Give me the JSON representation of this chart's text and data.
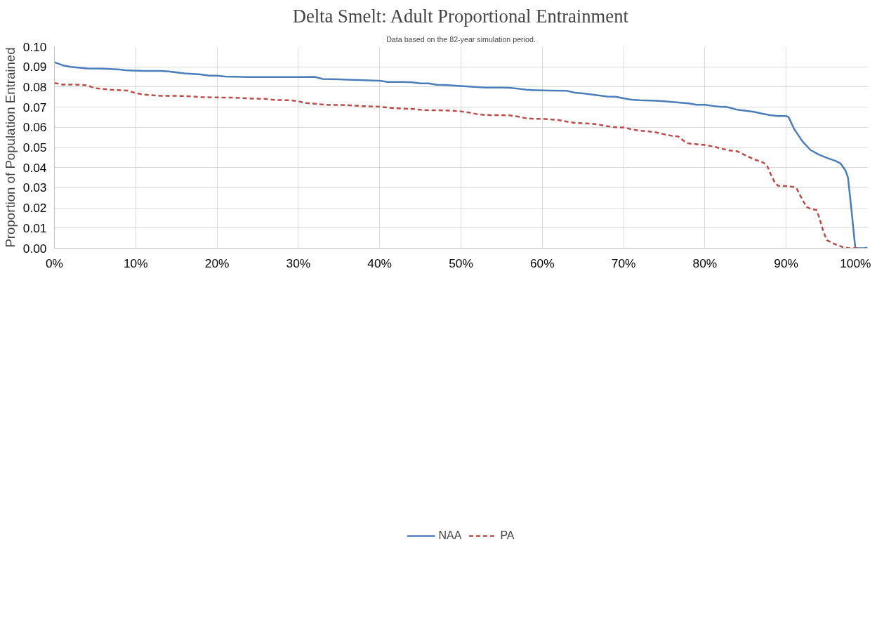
{
  "chart_data": {
    "type": "line",
    "title": "Delta Smelt: Adult Proportional Entrainment",
    "subtitle": "Data based on the 82-year simulation period.",
    "ylabel": "Proportion of Population Entrained",
    "xlim": [
      0,
      100
    ],
    "xticks": [
      {
        "value": 0,
        "label": "0%"
      },
      {
        "value": 10,
        "label": "10%"
      },
      {
        "value": 20,
        "label": "20%"
      },
      {
        "value": 30,
        "label": "30%"
      },
      {
        "value": 40,
        "label": "40%"
      },
      {
        "value": 50,
        "label": "50%"
      },
      {
        "value": 60,
        "label": "60%"
      },
      {
        "value": 70,
        "label": "70%"
      },
      {
        "value": 80,
        "label": "80%"
      },
      {
        "value": 90,
        "label": "90%"
      },
      {
        "value": 100,
        "label": "100%"
      }
    ],
    "ylim": [
      0,
      0.1
    ],
    "yticks": [
      {
        "value": 0,
        "label": "0.00"
      },
      {
        "value": 0.01,
        "label": "0.01"
      },
      {
        "value": 0.02,
        "label": "0.02"
      },
      {
        "value": 0.03,
        "label": "0.03"
      },
      {
        "value": 0.04,
        "label": "0.04"
      },
      {
        "value": 0.05,
        "label": "0.05"
      },
      {
        "value": 0.06,
        "label": "0.06"
      },
      {
        "value": 0.07,
        "label": "0.07"
      },
      {
        "value": 0.08,
        "label": "0.08"
      },
      {
        "value": 0.09,
        "label": "0.09"
      },
      {
        "value": 0.1,
        "label": "0.10"
      }
    ],
    "grid": true,
    "legend": "bottom",
    "marker": "none",
    "series": [
      {
        "name": "NAA",
        "color": "#4a7ebb",
        "line_style": "solid",
        "x": [
          0,
          1,
          2,
          4,
          6,
          8,
          9,
          11,
          13,
          14,
          16,
          18,
          19,
          20,
          21,
          22,
          24,
          30,
          32,
          33,
          35,
          38,
          40,
          41,
          43,
          44,
          45,
          46,
          47,
          48,
          51,
          53,
          55,
          56,
          58,
          59,
          61,
          63,
          64,
          65,
          67,
          68,
          69,
          70,
          71,
          72,
          74,
          75,
          77,
          78,
          79,
          80,
          81,
          82,
          82.5,
          83,
          84,
          85,
          86,
          87,
          88,
          89,
          90,
          90.3,
          91,
          92,
          93,
          94,
          95,
          96,
          96.7,
          97.3,
          97.6,
          98,
          98.5,
          99.5,
          100
        ],
        "values": [
          0.0923,
          0.0908,
          0.09,
          0.0892,
          0.0891,
          0.0887,
          0.0882,
          0.088,
          0.088,
          0.0877,
          0.0868,
          0.0862,
          0.0856,
          0.0856,
          0.0852,
          0.0851,
          0.0849,
          0.0849,
          0.085,
          0.084,
          0.0838,
          0.0834,
          0.0831,
          0.0825,
          0.0825,
          0.0823,
          0.0818,
          0.0818,
          0.0811,
          0.081,
          0.0802,
          0.0797,
          0.0797,
          0.0796,
          0.0787,
          0.0784,
          0.0782,
          0.0781,
          0.0772,
          0.0768,
          0.0758,
          0.0753,
          0.0752,
          0.0744,
          0.0737,
          0.0734,
          0.0732,
          0.0729,
          0.0722,
          0.0719,
          0.0712,
          0.0712,
          0.0706,
          0.0701,
          0.0702,
          0.0698,
          0.0687,
          0.0682,
          0.0677,
          0.0668,
          0.066,
          0.0656,
          0.0656,
          0.065,
          0.059,
          0.053,
          0.0487,
          0.0465,
          0.0448,
          0.0434,
          0.042,
          0.0385,
          0.035,
          0.02,
          0.0,
          0.0,
          0.0003
        ]
      },
      {
        "name": "PA",
        "color": "#be4b48",
        "line_style": "dashed",
        "x": [
          0,
          1,
          2,
          3,
          4,
          5,
          6,
          7,
          8,
          9,
          10,
          11,
          13,
          15,
          16,
          18,
          20,
          22,
          24,
          26,
          27,
          29,
          30,
          31,
          32,
          33,
          34,
          36,
          38,
          40,
          41,
          42,
          44,
          45,
          46,
          48,
          49,
          50,
          51,
          52,
          53,
          55,
          56,
          57,
          58,
          59,
          60,
          61,
          62,
          63,
          64,
          65,
          66,
          67,
          68,
          69,
          70,
          71,
          72,
          73,
          74,
          75,
          76,
          76.7,
          77.5,
          78,
          79,
          80,
          81,
          82,
          83,
          84,
          85,
          86,
          87,
          87.6,
          88,
          88.6,
          89,
          90,
          91,
          91.3,
          92,
          92.5,
          93,
          93.7,
          94,
          94.6,
          95,
          96,
          97,
          97.7,
          99
        ],
        "values": [
          0.082,
          0.0812,
          0.0812,
          0.0811,
          0.0808,
          0.0794,
          0.079,
          0.0786,
          0.0784,
          0.0782,
          0.077,
          0.0762,
          0.0756,
          0.0756,
          0.0755,
          0.075,
          0.0748,
          0.0747,
          0.0743,
          0.0741,
          0.0736,
          0.0734,
          0.0729,
          0.072,
          0.0717,
          0.0713,
          0.0711,
          0.071,
          0.0705,
          0.0702,
          0.0698,
          0.0694,
          0.0691,
          0.0687,
          0.0685,
          0.0684,
          0.0682,
          0.0679,
          0.0673,
          0.0665,
          0.0661,
          0.066,
          0.0659,
          0.0653,
          0.0645,
          0.0642,
          0.0642,
          0.0639,
          0.0636,
          0.0628,
          0.0622,
          0.062,
          0.0618,
          0.0613,
          0.0605,
          0.06,
          0.0599,
          0.059,
          0.0583,
          0.058,
          0.0575,
          0.0565,
          0.0557,
          0.0555,
          0.053,
          0.052,
          0.0516,
          0.0512,
          0.0505,
          0.0495,
          0.0485,
          0.0481,
          0.046,
          0.0442,
          0.0428,
          0.0415,
          0.0375,
          0.0325,
          0.031,
          0.0308,
          0.0304,
          0.0295,
          0.024,
          0.0205,
          0.0195,
          0.019,
          0.016,
          0.008,
          0.004,
          0.002,
          0.0005,
          0.0,
          0.0
        ]
      }
    ]
  }
}
